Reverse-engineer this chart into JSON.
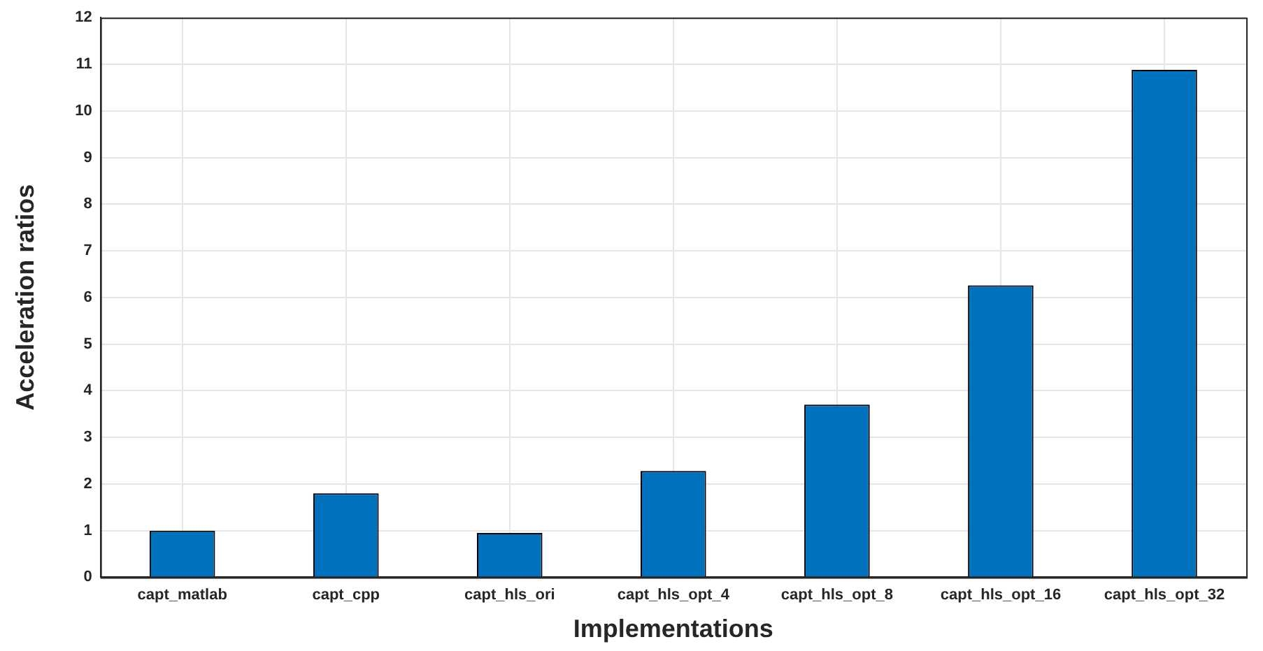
{
  "chart_data": {
    "type": "bar",
    "xlabel": "Implementations",
    "ylabel": "Acceleration ratios",
    "categories": [
      "capt_matlab",
      "capt_cpp",
      "capt_hls_ori",
      "capt_hls_opt_4",
      "capt_hls_opt_8",
      "capt_hls_opt_16",
      "capt_hls_opt_32"
    ],
    "values": [
      1.0,
      1.8,
      0.95,
      2.28,
      3.7,
      6.26,
      10.88
    ],
    "color": "#0072bd",
    "ylim": [
      0,
      12
    ],
    "yticks": [
      0,
      1,
      2,
      3,
      4,
      5,
      6,
      7,
      8,
      9,
      10,
      11,
      12
    ],
    "grid": true
  }
}
